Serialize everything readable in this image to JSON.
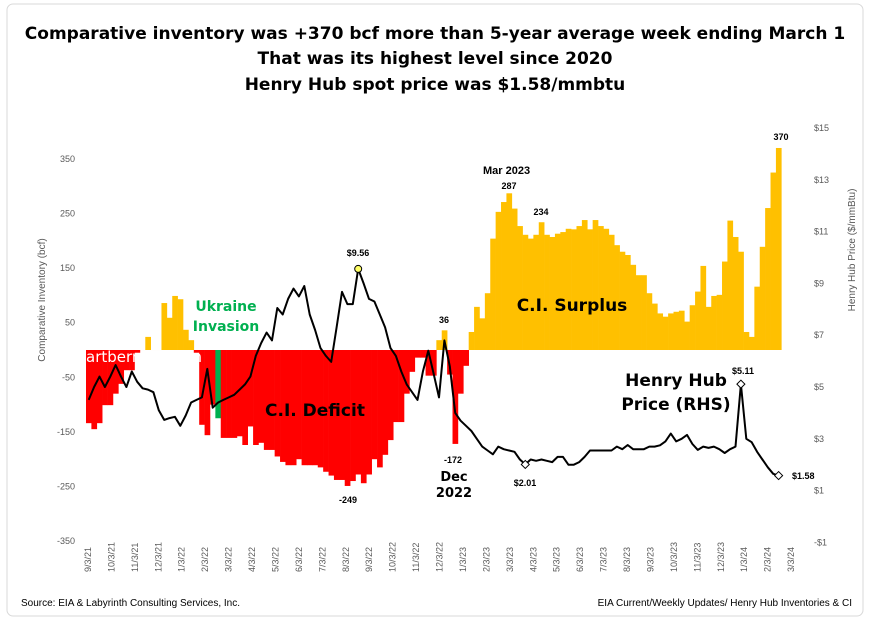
{
  "title_lines": [
    "Comparative inventory was +370 bcf more than 5-year average week ending March 1",
    "That was its highest level since 2020",
    "Henry Hub spot price was $1.58/mmbtu"
  ],
  "footer": {
    "source": "Source: EIA & Labyrinth Consulting Services, Inc.",
    "note": "EIA Current/Weekly Updates/ Henry Hub Inventories & CI"
  },
  "watermark": "artberman.com",
  "chart_data": {
    "type": "bar+line",
    "ylabel": "Comparative Inventory (bcf)",
    "y2label": "Henry Hub Price ($/mmBtu)",
    "ylim": [
      -350,
      350
    ],
    "y_ticks": [
      "350",
      "250",
      "150",
      "50",
      "-50",
      "-150",
      "-250",
      "-350"
    ],
    "y_tick_values": [
      350,
      250,
      150,
      50,
      -50,
      -150,
      -250,
      -350
    ],
    "y2lim": [
      -1,
      15
    ],
    "y2_ticks": [
      "$15",
      "$13",
      "$11",
      "$9",
      "$7",
      "$5",
      "$3",
      "$1",
      "-$1"
    ],
    "y2_tick_values": [
      15,
      13,
      11,
      9,
      7,
      5,
      3,
      1,
      -1
    ],
    "x_ticks": [
      "9/3/21",
      "10/3/21",
      "11/3/21",
      "12/3/21",
      "1/3/22",
      "2/3/22",
      "3/3/22",
      "4/3/22",
      "5/3/22",
      "6/3/22",
      "7/3/22",
      "8/3/22",
      "9/3/22",
      "10/3/22",
      "11/3/22",
      "12/3/22",
      "1/3/23",
      "2/3/23",
      "3/3/23",
      "4/3/23",
      "5/3/23",
      "6/3/23",
      "7/3/23",
      "8/3/23",
      "9/3/23",
      "10/3/23",
      "11/3/23",
      "12/3/23",
      "1/3/24",
      "2/3/24",
      "3/3/24"
    ],
    "frequency": "weekly",
    "grid": false,
    "colors": {
      "surplus": "#ffc000",
      "deficit": "#ff0000",
      "ukraine": "#00b050",
      "price": "#000000"
    },
    "series": [
      {
        "name": "Comparative Inventory",
        "axis": "left",
        "kind": "bar",
        "values": [
          -134,
          -145,
          -134,
          -101,
          -101,
          -80,
          -62,
          -37,
          -37,
          -5,
          0,
          24,
          0,
          0,
          86,
          59,
          99,
          93,
          37,
          18,
          -5,
          -137,
          -156,
          -100,
          -125,
          -161,
          -161,
          -161,
          -158,
          -174,
          -140,
          -174,
          -170,
          -183,
          -183,
          -195,
          -205,
          -211,
          -211,
          -200,
          -211,
          -211,
          -211,
          -215,
          -223,
          -230,
          -238,
          -238,
          -249,
          -240,
          -228,
          -244,
          -228,
          -200,
          -215,
          -192,
          -165,
          -132,
          -132,
          -80,
          -40,
          -14,
          -14,
          -47,
          -47,
          18,
          36,
          -45,
          -172,
          -80,
          -29,
          33,
          79,
          58,
          104,
          204,
          253,
          271,
          287,
          259,
          227,
          211,
          204,
          211,
          234,
          211,
          207,
          213,
          216,
          222,
          221,
          227,
          238,
          221,
          238,
          227,
          222,
          211,
          192,
          180,
          174,
          156,
          137,
          137,
          104,
          85,
          67,
          61,
          67,
          70,
          72,
          52,
          82,
          107,
          154,
          79,
          99,
          101,
          162,
          237,
          207,
          180,
          33,
          24,
          116,
          189,
          260,
          325,
          370
        ],
        "highlight_index": 24
      },
      {
        "name": "Henry Hub Price (RHS)",
        "axis": "right",
        "kind": "line",
        "values": [
          4.5,
          5.0,
          5.4,
          5.0,
          5.4,
          5.85,
          5.4,
          5.0,
          5.6,
          5.2,
          4.95,
          4.9,
          4.8,
          4.1,
          3.73,
          3.8,
          3.85,
          3.5,
          3.9,
          4.4,
          4.5,
          4.6,
          5.7,
          4.2,
          4.4,
          4.5,
          4.6,
          4.7,
          4.9,
          5.1,
          5.4,
          6.2,
          6.7,
          7.1,
          6.8,
          8.05,
          7.8,
          8.4,
          8.8,
          8.5,
          8.9,
          7.8,
          7.2,
          6.5,
          6.2,
          5.97,
          7.3,
          8.67,
          8.2,
          8.2,
          9.56,
          9.0,
          8.4,
          8.3,
          7.8,
          7.3,
          6.5,
          6.2,
          5.6,
          5.1,
          4.8,
          4.5,
          5.6,
          6.4,
          5.5,
          4.6,
          6.8,
          5.8,
          4.0,
          3.7,
          3.5,
          3.3,
          3.0,
          2.7,
          2.55,
          2.4,
          2.7,
          2.6,
          2.55,
          2.5,
          2.2,
          2.01,
          2.2,
          2.15,
          2.2,
          2.15,
          2.1,
          2.3,
          2.3,
          2.0,
          2.0,
          2.1,
          2.3,
          2.55,
          2.55,
          2.55,
          2.55,
          2.55,
          2.7,
          2.6,
          2.76,
          2.6,
          2.6,
          2.6,
          2.7,
          2.7,
          2.75,
          2.9,
          3.2,
          2.9,
          3.0,
          3.15,
          2.8,
          2.57,
          2.7,
          2.65,
          2.7,
          2.6,
          2.45,
          2.6,
          2.7,
          5.11,
          3.0,
          2.87,
          2.5,
          2.2,
          1.9,
          1.65,
          1.58
        ]
      }
    ],
    "annotations": {
      "mar2023": "Mar 2023",
      "peak287": "287",
      "v234": "234",
      "v36": "36",
      "p956": "$9.56",
      "ukraine1": "Ukraine",
      "ukraine2": "Invasion",
      "surplus": "C.I. Surplus",
      "deficit": "C.I. Deficit",
      "v249": "-249",
      "v172": "-172",
      "dec1": "Dec",
      "dec2": "2022",
      "p201": "$2.01",
      "hh1": "Henry Hub",
      "hh2": "Price (RHS)",
      "p511": "$5.11",
      "p158": "$1.58",
      "v370": "370"
    }
  }
}
